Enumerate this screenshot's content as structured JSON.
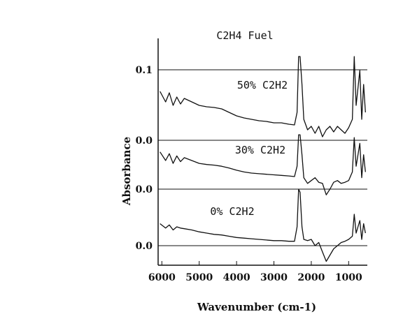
{
  "chart_data": {
    "type": "line",
    "title": "C2H4 Fuel",
    "xlabel": "Wavenumber (cm-1)",
    "ylabel": "Absorbance",
    "x_reversed": true,
    "xlim": [
      6100,
      500
    ],
    "x_ticks": [
      6000,
      5000,
      4000,
      3000,
      2000,
      1000
    ],
    "y_tick_labels": [
      "0.1",
      "0.0",
      "0.0",
      "0.0"
    ],
    "grid": false,
    "series": [
      {
        "name": "50% C2H2",
        "baseline_label": "0.0",
        "points": [
          [
            6050,
            0.07
          ],
          [
            5900,
            0.055
          ],
          [
            5800,
            0.068
          ],
          [
            5700,
            0.05
          ],
          [
            5600,
            0.062
          ],
          [
            5500,
            0.052
          ],
          [
            5400,
            0.06
          ],
          [
            5200,
            0.055
          ],
          [
            5000,
            0.05
          ],
          [
            4800,
            0.048
          ],
          [
            4600,
            0.047
          ],
          [
            4400,
            0.045
          ],
          [
            4200,
            0.04
          ],
          [
            4000,
            0.035
          ],
          [
            3800,
            0.032
          ],
          [
            3600,
            0.03
          ],
          [
            3400,
            0.028
          ],
          [
            3200,
            0.027
          ],
          [
            3000,
            0.025
          ],
          [
            2800,
            0.025
          ],
          [
            2600,
            0.023
          ],
          [
            2450,
            0.022
          ],
          [
            2380,
            0.04
          ],
          [
            2340,
            0.12
          ],
          [
            2300,
            0.12
          ],
          [
            2250,
            0.08
          ],
          [
            2200,
            0.03
          ],
          [
            2100,
            0.015
          ],
          [
            2000,
            0.02
          ],
          [
            1900,
            0.01
          ],
          [
            1800,
            0.02
          ],
          [
            1700,
            0.005
          ],
          [
            1600,
            0.015
          ],
          [
            1500,
            0.02
          ],
          [
            1400,
            0.012
          ],
          [
            1300,
            0.02
          ],
          [
            1200,
            0.015
          ],
          [
            1100,
            0.01
          ],
          [
            1000,
            0.018
          ],
          [
            900,
            0.03
          ],
          [
            850,
            0.12
          ],
          [
            800,
            0.05
          ],
          [
            700,
            0.1
          ],
          [
            650,
            0.03
          ],
          [
            600,
            0.08
          ],
          [
            550,
            0.04
          ]
        ]
      },
      {
        "name": "30% C2H2",
        "baseline_label": "0.0",
        "points": [
          [
            6050,
            0.065
          ],
          [
            5900,
            0.05
          ],
          [
            5800,
            0.062
          ],
          [
            5700,
            0.045
          ],
          [
            5600,
            0.058
          ],
          [
            5500,
            0.048
          ],
          [
            5400,
            0.055
          ],
          [
            5200,
            0.05
          ],
          [
            5000,
            0.045
          ],
          [
            4800,
            0.043
          ],
          [
            4600,
            0.042
          ],
          [
            4400,
            0.04
          ],
          [
            4200,
            0.037
          ],
          [
            4000,
            0.033
          ],
          [
            3800,
            0.03
          ],
          [
            3600,
            0.028
          ],
          [
            3400,
            0.027
          ],
          [
            3200,
            0.026
          ],
          [
            3000,
            0.025
          ],
          [
            2800,
            0.024
          ],
          [
            2600,
            0.023
          ],
          [
            2450,
            0.022
          ],
          [
            2380,
            0.04
          ],
          [
            2340,
            0.095
          ],
          [
            2300,
            0.095
          ],
          [
            2250,
            0.06
          ],
          [
            2200,
            0.02
          ],
          [
            2100,
            0.01
          ],
          [
            2000,
            0.015
          ],
          [
            1900,
            0.02
          ],
          [
            1800,
            0.012
          ],
          [
            1700,
            0.01
          ],
          [
            1600,
            -0.01
          ],
          [
            1500,
            0.0
          ],
          [
            1400,
            0.012
          ],
          [
            1300,
            0.015
          ],
          [
            1200,
            0.01
          ],
          [
            1100,
            0.012
          ],
          [
            1000,
            0.015
          ],
          [
            900,
            0.03
          ],
          [
            850,
            0.09
          ],
          [
            800,
            0.04
          ],
          [
            700,
            0.08
          ],
          [
            650,
            0.02
          ],
          [
            600,
            0.06
          ],
          [
            550,
            0.03
          ]
        ]
      },
      {
        "name": "0% C2H2",
        "baseline_label": "0.0",
        "points": [
          [
            6050,
            0.035
          ],
          [
            5900,
            0.028
          ],
          [
            5800,
            0.033
          ],
          [
            5700,
            0.025
          ],
          [
            5600,
            0.03
          ],
          [
            5500,
            0.028
          ],
          [
            5400,
            0.027
          ],
          [
            5200,
            0.025
          ],
          [
            5000,
            0.022
          ],
          [
            4800,
            0.02
          ],
          [
            4600,
            0.018
          ],
          [
            4400,
            0.017
          ],
          [
            4200,
            0.015
          ],
          [
            4000,
            0.013
          ],
          [
            3800,
            0.012
          ],
          [
            3600,
            0.011
          ],
          [
            3400,
            0.01
          ],
          [
            3200,
            0.009
          ],
          [
            3000,
            0.008
          ],
          [
            2800,
            0.008
          ],
          [
            2600,
            0.007
          ],
          [
            2450,
            0.007
          ],
          [
            2380,
            0.03
          ],
          [
            2340,
            0.09
          ],
          [
            2300,
            0.085
          ],
          [
            2250,
            0.03
          ],
          [
            2200,
            0.01
          ],
          [
            2100,
            0.008
          ],
          [
            2000,
            0.01
          ],
          [
            1900,
            0.0
          ],
          [
            1800,
            0.005
          ],
          [
            1700,
            -0.01
          ],
          [
            1600,
            -0.025
          ],
          [
            1500,
            -0.015
          ],
          [
            1400,
            -0.005
          ],
          [
            1300,
            0.0
          ],
          [
            1200,
            0.005
          ],
          [
            1100,
            0.007
          ],
          [
            1000,
            0.01
          ],
          [
            900,
            0.015
          ],
          [
            850,
            0.05
          ],
          [
            800,
            0.02
          ],
          [
            700,
            0.04
          ],
          [
            650,
            0.01
          ],
          [
            600,
            0.035
          ],
          [
            550,
            0.02
          ]
        ]
      }
    ]
  }
}
